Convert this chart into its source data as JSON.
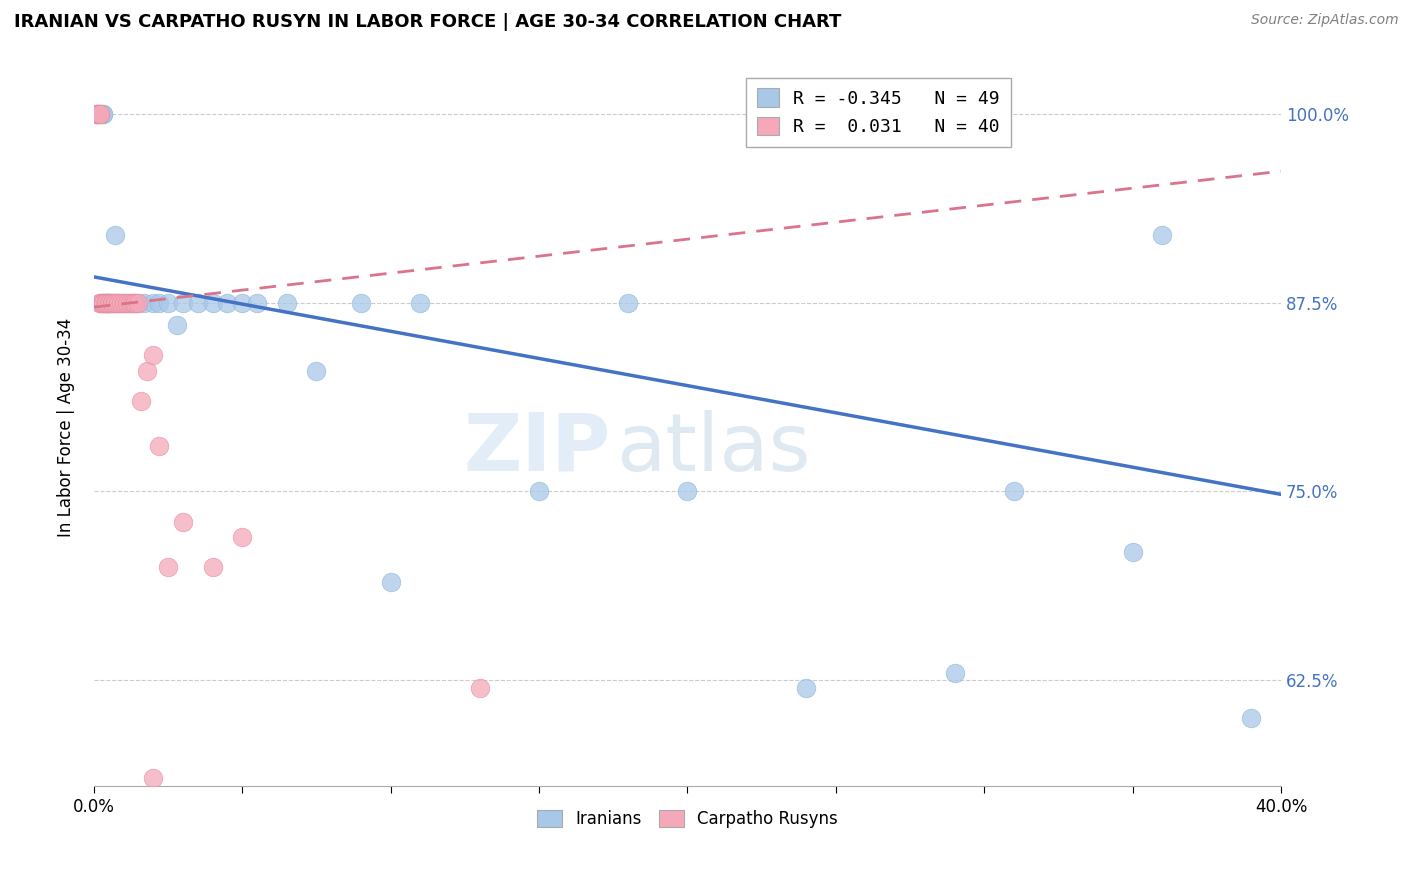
{
  "title": "IRANIAN VS CARPATHO RUSYN IN LABOR FORCE | AGE 30-34 CORRELATION CHART",
  "source": "Source: ZipAtlas.com",
  "ylabel": "In Labor Force | Age 30-34",
  "xlim": [
    0.0,
    0.4
  ],
  "ylim": [
    0.555,
    1.03
  ],
  "yticks": [
    0.625,
    0.75,
    0.875,
    1.0
  ],
  "ytick_labels": [
    "62.5%",
    "75.0%",
    "87.5%",
    "100.0%"
  ],
  "xticks": [
    0.0,
    0.05,
    0.1,
    0.15,
    0.2,
    0.25,
    0.3,
    0.35,
    0.4
  ],
  "xtick_labels": [
    "0.0%",
    "",
    "",
    "",
    "",
    "",
    "",
    "",
    "40.0%"
  ],
  "blue_color": "#a8c8e8",
  "pink_color": "#f4a8b8",
  "blue_line_color": "#4472c4",
  "pink_line_color": "#d9748a",
  "legend_blue_label": "R = -0.345   N = 49",
  "legend_pink_label": "R =  0.031   N = 40",
  "watermark_1": "ZIP",
  "watermark_2": "atlas",
  "iranians_label": "Iranians",
  "carpatho_label": "Carpatho Rusyns",
  "blue_line_x0": 0.0,
  "blue_line_y0": 0.892,
  "blue_line_x1": 0.4,
  "blue_line_y1": 0.748,
  "pink_line_x0": 0.0,
  "pink_line_y0": 0.872,
  "pink_line_x1": 0.4,
  "pink_line_y1": 0.962,
  "blue_x": [
    0.001,
    0.001,
    0.002,
    0.002,
    0.003,
    0.003,
    0.004,
    0.004,
    0.005,
    0.005,
    0.005,
    0.006,
    0.007,
    0.007,
    0.008,
    0.008,
    0.009,
    0.01,
    0.01,
    0.011,
    0.012,
    0.013,
    0.014,
    0.015,
    0.017,
    0.02,
    0.022,
    0.025,
    0.028,
    0.03,
    0.035,
    0.04,
    0.045,
    0.05,
    0.055,
    0.065,
    0.075,
    0.09,
    0.1,
    0.11,
    0.15,
    0.18,
    0.2,
    0.24,
    0.29,
    0.31,
    0.35,
    0.36,
    0.39
  ],
  "blue_y": [
    1.0,
    1.0,
    1.0,
    1.0,
    1.0,
    1.0,
    0.875,
    0.875,
    0.875,
    0.875,
    0.875,
    0.875,
    0.875,
    0.92,
    0.875,
    0.875,
    0.875,
    0.875,
    0.875,
    0.875,
    0.875,
    0.875,
    0.875,
    0.875,
    0.875,
    0.875,
    0.875,
    0.875,
    0.86,
    0.875,
    0.875,
    0.875,
    0.875,
    0.875,
    0.875,
    0.875,
    0.83,
    0.875,
    0.69,
    0.875,
    0.75,
    0.875,
    0.75,
    0.62,
    0.63,
    0.75,
    0.71,
    0.92,
    0.6
  ],
  "pink_x": [
    0.001,
    0.001,
    0.001,
    0.002,
    0.002,
    0.002,
    0.002,
    0.002,
    0.003,
    0.003,
    0.003,
    0.003,
    0.004,
    0.004,
    0.004,
    0.004,
    0.005,
    0.005,
    0.006,
    0.006,
    0.007,
    0.007,
    0.008,
    0.009,
    0.01,
    0.011,
    0.012,
    0.013,
    0.014,
    0.015,
    0.016,
    0.018,
    0.02,
    0.022,
    0.025,
    0.03,
    0.04,
    0.05,
    0.13,
    0.02
  ],
  "pink_y": [
    1.0,
    1.0,
    1.0,
    1.0,
    1.0,
    0.875,
    0.875,
    0.875,
    0.875,
    0.875,
    0.875,
    0.875,
    0.875,
    0.875,
    0.875,
    0.875,
    0.875,
    0.875,
    0.875,
    0.875,
    0.875,
    0.875,
    0.875,
    0.875,
    0.875,
    0.875,
    0.875,
    0.875,
    0.875,
    0.875,
    0.81,
    0.83,
    0.84,
    0.78,
    0.7,
    0.73,
    0.7,
    0.72,
    0.62,
    0.56
  ]
}
